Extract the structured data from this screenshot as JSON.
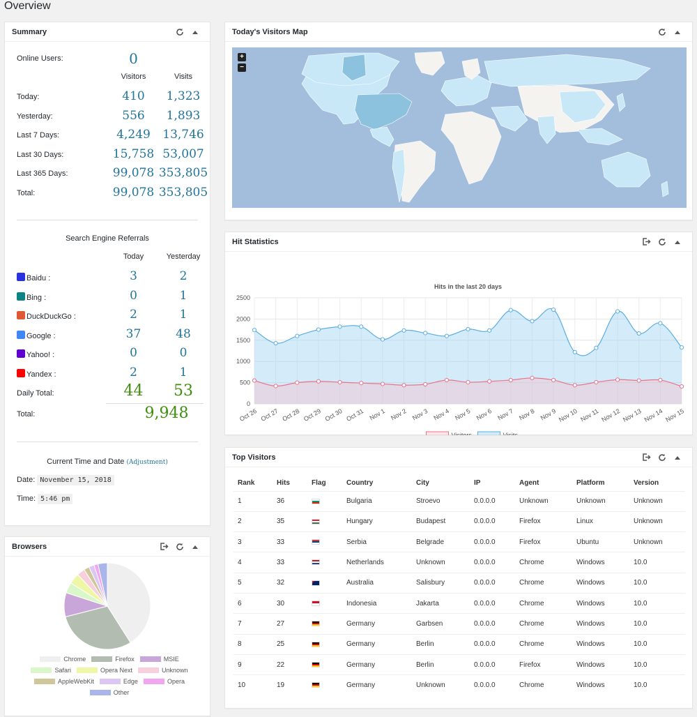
{
  "page_title": "Overview",
  "summary": {
    "title": "Summary",
    "online_label": "Online Users:",
    "online_value": "0",
    "col_visitors": "Visitors",
    "col_visits": "Visits",
    "rows": [
      {
        "label": "Today:",
        "visitors": "410",
        "visits": "1,323"
      },
      {
        "label": "Yesterday:",
        "visitors": "556",
        "visits": "1,893"
      },
      {
        "label": "Last 7 Days:",
        "visitors": "4,249",
        "visits": "13,746"
      },
      {
        "label": "Last 30 Days:",
        "visitors": "15,758",
        "visits": "53,007"
      },
      {
        "label": "Last 365 Days:",
        "visitors": "99,078",
        "visits": "353,805"
      },
      {
        "label": "Total:",
        "visitors": "99,078",
        "visits": "353,805"
      }
    ],
    "search_title": "Search Engine Referrals",
    "col_today": "Today",
    "col_yesterday": "Yesterday",
    "engines": [
      {
        "label": "Baidu :",
        "today": "3",
        "yesterday": "2",
        "color": "#2932e1",
        "icon": "baidu-icon"
      },
      {
        "label": "Bing :",
        "today": "0",
        "yesterday": "1",
        "color": "#0c8484",
        "icon": "bing-icon"
      },
      {
        "label": "DuckDuckGo :",
        "today": "2",
        "yesterday": "1",
        "color": "#de5833",
        "icon": "duckduckgo-icon"
      },
      {
        "label": "Google :",
        "today": "37",
        "yesterday": "48",
        "color": "#4285f4",
        "icon": "google-icon"
      },
      {
        "label": "Yahoo! :",
        "today": "0",
        "yesterday": "0",
        "color": "#6001d2",
        "icon": "yahoo-icon"
      },
      {
        "label": "Yandex :",
        "today": "2",
        "yesterday": "1",
        "color": "#ff0000",
        "icon": "yandex-icon"
      }
    ],
    "daily_total_label": "Daily Total:",
    "daily_total_today": "44",
    "daily_total_yesterday": "53",
    "total_label": "Total:",
    "total_value": "9,948",
    "time_title": "Current Time and Date",
    "adjustment_link": "(Adjustment)",
    "date_label": "Date:",
    "date_value": "November 15, 2018",
    "time_label": "Time:",
    "time_value": "5:46 pm"
  },
  "browsers": {
    "title": "Browsers",
    "chart_data": {
      "type": "pie",
      "slices": [
        {
          "name": "Chrome",
          "value": 41,
          "color": "#efefef"
        },
        {
          "name": "Firefox",
          "value": 30,
          "color": "#b3bcb0"
        },
        {
          "name": "MSIE",
          "value": 9,
          "color": "#c9a6d9"
        },
        {
          "name": "Safari",
          "value": 4,
          "color": "#d9f7c8"
        },
        {
          "name": "Opera Next",
          "value": 4,
          "color": "#eef7a6"
        },
        {
          "name": "Unknown",
          "value": 3,
          "color": "#f8d0dc"
        },
        {
          "name": "AppleWebKit",
          "value": 2,
          "color": "#cfc79a"
        },
        {
          "name": "Edge",
          "value": 2,
          "color": "#dcc6f4"
        },
        {
          "name": "Opera",
          "value": 1.5,
          "color": "#f2a6f2"
        },
        {
          "name": "Other",
          "value": 3.5,
          "color": "#aab6ea"
        }
      ]
    }
  },
  "map": {
    "title": "Today's Visitors Map",
    "zoom_in": "+",
    "zoom_out": "−",
    "ocean_color": "#a3bedd",
    "land_color": "#f4f3f0",
    "visited_color": "#c8e8f8",
    "active_color": "#8cc2de"
  },
  "hits": {
    "title": "Hit Statistics",
    "chart_data": {
      "type": "line",
      "title": "Hits in the last 20 days",
      "categories": [
        "Oct 26",
        "Oct 27",
        "Oct 28",
        "Oct 29",
        "Oct 30",
        "Oct 31",
        "Nov 1",
        "Nov 2",
        "Nov 3",
        "Nov 4",
        "Nov 5",
        "Nov 6",
        "Nov 7",
        "Nov 8",
        "Nov 9",
        "Nov 10",
        "Nov 11",
        "Nov 12",
        "Nov 13",
        "Nov 14",
        "Nov 15"
      ],
      "series": [
        {
          "name": "Visitors",
          "values": [
            550,
            420,
            500,
            530,
            510,
            490,
            470,
            440,
            460,
            560,
            510,
            530,
            560,
            610,
            560,
            440,
            510,
            570,
            550,
            560,
            410
          ],
          "color": "#e8738b",
          "fill": "rgba(255,182,193,0.35)"
        },
        {
          "name": "Visits",
          "values": [
            1740,
            1430,
            1600,
            1750,
            1820,
            1820,
            1520,
            1730,
            1670,
            1600,
            1760,
            1730,
            2210,
            1950,
            2220,
            1220,
            1320,
            2180,
            1660,
            1900,
            1330
          ],
          "color": "#5aaee0",
          "fill": "rgba(160,210,245,0.45)"
        }
      ],
      "ylim": [
        0,
        2500
      ],
      "yticks": [
        0,
        500,
        1000,
        1500,
        2000,
        2500
      ],
      "grid": true,
      "legend": "bottom"
    }
  },
  "top_visitors": {
    "title": "Top Visitors",
    "headers": [
      "Rank",
      "Hits",
      "Flag",
      "Country",
      "City",
      "IP",
      "Agent",
      "Platform",
      "Version"
    ],
    "rows": [
      {
        "rank": "1",
        "hits": "36",
        "flag": "bg",
        "country": "Bulgaria",
        "city": "Stroevo",
        "ip": "0.0.0.0",
        "agent": "Unknown",
        "platform": "Unknown",
        "version": "Unknown"
      },
      {
        "rank": "2",
        "hits": "35",
        "flag": "hu",
        "country": "Hungary",
        "city": "Budapest",
        "ip": "0.0.0.0",
        "agent": "Firefox",
        "platform": "Linux",
        "version": "Unknown"
      },
      {
        "rank": "3",
        "hits": "33",
        "flag": "rs",
        "country": "Serbia",
        "city": "Belgrade",
        "ip": "0.0.0.0",
        "agent": "Firefox",
        "platform": "Ubuntu",
        "version": "Unknown"
      },
      {
        "rank": "4",
        "hits": "33",
        "flag": "nl",
        "country": "Netherlands",
        "city": "Unknown",
        "ip": "0.0.0.0",
        "agent": "Chrome",
        "platform": "Windows",
        "version": "10.0"
      },
      {
        "rank": "5",
        "hits": "32",
        "flag": "au",
        "country": "Australia",
        "city": "Salisbury",
        "ip": "0.0.0.0",
        "agent": "Chrome",
        "platform": "Windows",
        "version": "10.0"
      },
      {
        "rank": "6",
        "hits": "30",
        "flag": "id",
        "country": "Indonesia",
        "city": "Jakarta",
        "ip": "0.0.0.0",
        "agent": "Chrome",
        "platform": "Windows",
        "version": "10.0"
      },
      {
        "rank": "7",
        "hits": "27",
        "flag": "de",
        "country": "Germany",
        "city": "Garbsen",
        "ip": "0.0.0.0",
        "agent": "Chrome",
        "platform": "Windows",
        "version": "10.0"
      },
      {
        "rank": "8",
        "hits": "25",
        "flag": "de",
        "country": "Germany",
        "city": "Berlin",
        "ip": "0.0.0.0",
        "agent": "Chrome",
        "platform": "Windows",
        "version": "10.0"
      },
      {
        "rank": "9",
        "hits": "22",
        "flag": "de",
        "country": "Germany",
        "city": "Berlin",
        "ip": "0.0.0.0",
        "agent": "Firefox",
        "platform": "Windows",
        "version": "10.0"
      },
      {
        "rank": "10",
        "hits": "19",
        "flag": "de",
        "country": "Germany",
        "city": "Unknown",
        "ip": "0.0.0.0",
        "agent": "Chrome",
        "platform": "Windows",
        "version": "10.0"
      }
    ]
  }
}
